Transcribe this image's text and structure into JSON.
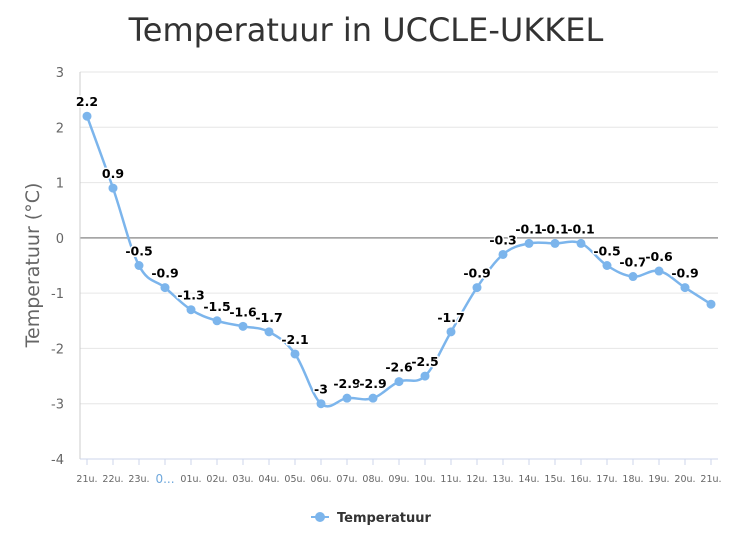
{
  "chart_data": {
    "type": "line",
    "title": "Temperatuur in UCCLE-UKKEL",
    "xlabel": "",
    "ylabel": "Temperatuur (°C)",
    "ylim": [
      -4,
      3
    ],
    "yticks": [
      3,
      2,
      1,
      0,
      -1,
      -2,
      -3,
      -4
    ],
    "grid": true,
    "legend_position": "bottom-center",
    "categories": [
      "21u.",
      "22u.",
      "23u.",
      "0...",
      "01u.",
      "02u.",
      "03u.",
      "04u.",
      "05u.",
      "06u.",
      "07u.",
      "08u.",
      "09u.",
      "10u.",
      "11u.",
      "12u.",
      "13u.",
      "14u.",
      "15u.",
      "16u.",
      "17u.",
      "18u.",
      "19u.",
      "20u.",
      "21u."
    ],
    "highlighted_category_index": 3,
    "series": [
      {
        "name": "Temperatuur",
        "color": "#7cb5ec",
        "values": [
          2.2,
          0.9,
          -0.5,
          -0.9,
          -1.3,
          -1.5,
          -1.6,
          -1.7,
          -2.1,
          -3,
          -2.9,
          -2.9,
          -2.6,
          -2.5,
          -1.7,
          -0.9,
          -0.3,
          -0.1,
          -0.1,
          -0.1,
          -0.5,
          -0.7,
          -0.6,
          -0.9,
          -1.2
        ],
        "data_labels": [
          "2.2",
          "0.9",
          "-0.5",
          "-0.9",
          "-1.3",
          "-1.5",
          "-1.6",
          "-1.7",
          "-2.1",
          "-3",
          "-2.9",
          "-2.9",
          "-2.6",
          "-2.5",
          "-1.7",
          "-0.9",
          "-0.3",
          "-0.1",
          "-0.1",
          "-0.1",
          "-0.5",
          "-0.7",
          "-0.6",
          "-0.9",
          ""
        ]
      }
    ]
  }
}
